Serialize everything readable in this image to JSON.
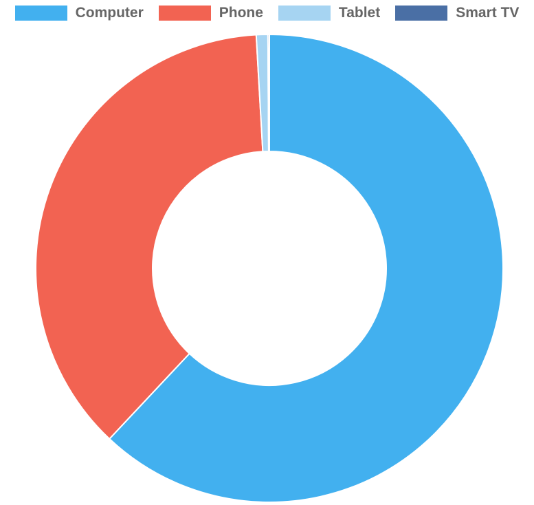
{
  "chart_data": {
    "type": "pie",
    "variant": "doughnut",
    "title": "",
    "legend_position": "top",
    "categories": [
      "Computer",
      "Phone",
      "Tablet",
      "Smart TV"
    ],
    "values": [
      62.0,
      37.1,
      0.8,
      0.1
    ],
    "colors": [
      "#42b0ef",
      "#f26352",
      "#a6d4f2",
      "#4a6fa5"
    ]
  }
}
